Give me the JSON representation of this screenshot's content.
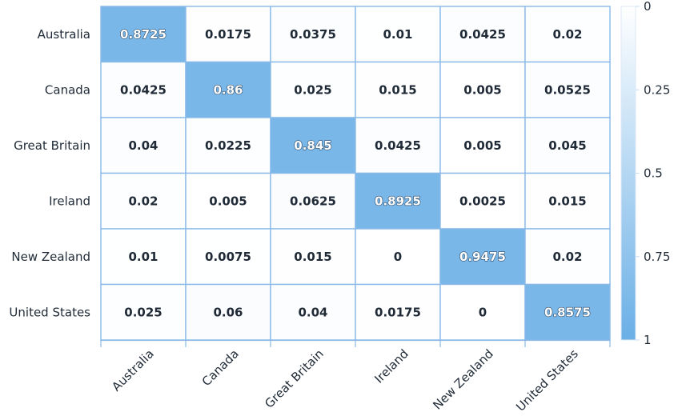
{
  "chart_data": {
    "type": "heatmap",
    "rows": [
      "Australia",
      "Canada",
      "Great Britain",
      "Ireland",
      "New Zealand",
      "United States"
    ],
    "columns": [
      "Australia",
      "Canada",
      "Great Britain",
      "Ireland",
      "New Zealand",
      "United States"
    ],
    "values": [
      [
        0.8725,
        0.0175,
        0.0375,
        0.01,
        0.0425,
        0.02
      ],
      [
        0.0425,
        0.86,
        0.025,
        0.015,
        0.005,
        0.0525
      ],
      [
        0.04,
        0.0225,
        0.845,
        0.0425,
        0.005,
        0.045
      ],
      [
        0.02,
        0.005,
        0.0625,
        0.8925,
        0.0025,
        0.015
      ],
      [
        0.01,
        0.0075,
        0.015,
        0,
        0.9475,
        0.02
      ],
      [
        0.025,
        0.06,
        0.04,
        0.0175,
        0,
        0.8575
      ]
    ],
    "labels": [
      [
        "0.8725",
        "0.0175",
        "0.0375",
        "0.01",
        "0.0425",
        "0.02"
      ],
      [
        "0.0425",
        "0.86",
        "0.025",
        "0.015",
        "0.005",
        "0.0525"
      ],
      [
        "0.04",
        "0.0225",
        "0.845",
        "0.0425",
        "0.005",
        "0.045"
      ],
      [
        "0.02",
        "0.005",
        "0.0625",
        "0.8925",
        "0.0025",
        "0.015"
      ],
      [
        "0.01",
        "0.0075",
        "0.015",
        "0",
        "0.9475",
        "0.02"
      ],
      [
        "0.025",
        "0.06",
        "0.04",
        "0.0175",
        "0",
        "0.8575"
      ]
    ],
    "color_scale": {
      "min": 0,
      "max": 1,
      "min_color": "#ffffff",
      "max_color": "#6aafe6",
      "ticks": [
        "0",
        "0.25",
        "0.5",
        "0.75",
        "1"
      ]
    },
    "grid_line_color": "#8ab9e8",
    "legend": "right"
  }
}
